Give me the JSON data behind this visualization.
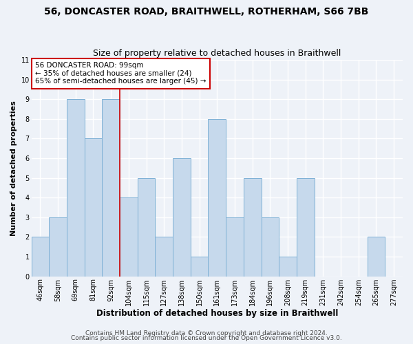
{
  "title": "56, DONCASTER ROAD, BRAITHWELL, ROTHERHAM, S66 7BB",
  "subtitle": "Size of property relative to detached houses in Braithwell",
  "xlabel": "Distribution of detached houses by size in Braithwell",
  "ylabel": "Number of detached properties",
  "bin_labels": [
    "46sqm",
    "58sqm",
    "69sqm",
    "81sqm",
    "92sqm",
    "104sqm",
    "115sqm",
    "127sqm",
    "138sqm",
    "150sqm",
    "161sqm",
    "173sqm",
    "184sqm",
    "196sqm",
    "208sqm",
    "219sqm",
    "231sqm",
    "242sqm",
    "254sqm",
    "265sqm",
    "277sqm"
  ],
  "bar_values": [
    2,
    3,
    9,
    7,
    9,
    4,
    5,
    2,
    6,
    1,
    8,
    3,
    5,
    3,
    1,
    5,
    0,
    0,
    0,
    2,
    0
  ],
  "bar_color": "#c6d9ec",
  "bar_edge_color": "#7bafd4",
  "marker_bin_index": 4,
  "marker_label": "56 DONCASTER ROAD: 99sqm",
  "annotation_line1": "← 35% of detached houses are smaller (24)",
  "annotation_line2": "65% of semi-detached houses are larger (45) →",
  "marker_line_color": "#cc0000",
  "annotation_box_edge_color": "#cc0000",
  "ylim": [
    0,
    11
  ],
  "yticks": [
    0,
    1,
    2,
    3,
    4,
    5,
    6,
    7,
    8,
    9,
    10,
    11
  ],
  "footer1": "Contains HM Land Registry data © Crown copyright and database right 2024.",
  "footer2": "Contains public sector information licensed under the Open Government Licence v3.0.",
  "background_color": "#eef2f8",
  "plot_bg_color": "#eef2f8",
  "grid_color": "#ffffff",
  "title_fontsize": 10,
  "subtitle_fontsize": 9,
  "xlabel_fontsize": 8.5,
  "ylabel_fontsize": 8,
  "tick_fontsize": 7,
  "annotation_fontsize": 7.5,
  "footer_fontsize": 6.5
}
